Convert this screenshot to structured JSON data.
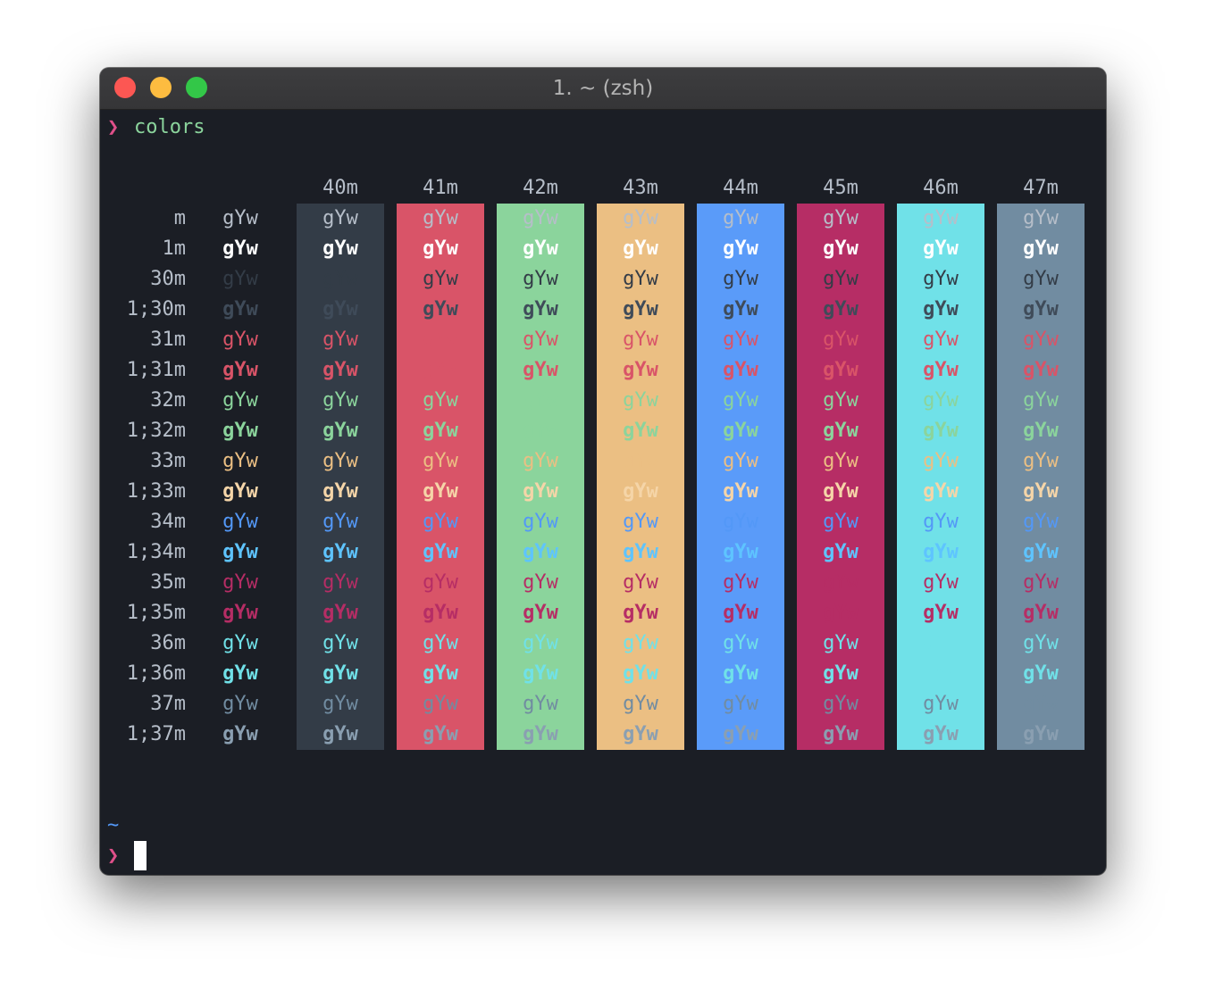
{
  "window_title": "1. ~ (zsh)",
  "prompt_symbol": "❯",
  "command": "colors",
  "cwd": "~",
  "color_table": {
    "sample": "gYw",
    "column_headers": [
      "40m",
      "41m",
      "42m",
      "43m",
      "44m",
      "45m",
      "46m",
      "47m"
    ],
    "row_labels": [
      "m",
      "1m",
      "30m",
      "1;30m",
      "31m",
      "1;31m",
      "32m",
      "1;32m",
      "33m",
      "1;33m",
      "34m",
      "1;34m",
      "35m",
      "1;35m",
      "36m",
      "1;36m",
      "37m",
      "1;37m"
    ]
  }
}
